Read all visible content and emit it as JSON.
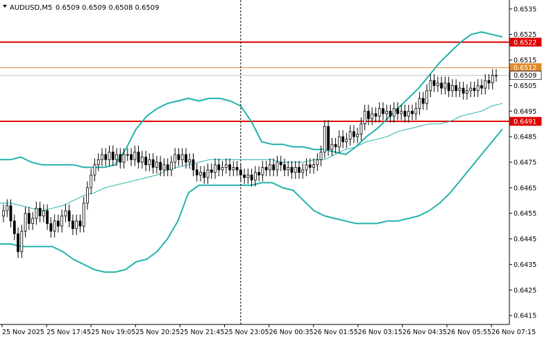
{
  "header": {
    "symbol": "AUDUSD,M5",
    "ohlc": "0.6509 0.6509 0.6508 0.6509"
  },
  "colors": {
    "background": "#ffffff",
    "candle": "#000000",
    "bollinger": "#20b2aa",
    "moving_average": "#20b2aa",
    "support_resistance": "#e00000",
    "orange_level": "#e08a2a",
    "current_price_line": "#c0c0c0",
    "dropdown_icon": "chevron-down-icon"
  },
  "chart_data": {
    "type": "candlestick",
    "x_tick_labels": [
      "25 Nov 2025",
      "25 Nov 17:45",
      "25 Nov 19:05",
      "25 Nov 20:25",
      "25 Nov 21:45",
      "25 Nov 23:05",
      "26 Nov 00:35",
      "26 Nov 01:55",
      "26 Nov 03:15",
      "26 Nov 04:35",
      "26 Nov 05:55",
      "26 Nov 07:15"
    ],
    "y_ticks": [
      "0.6535",
      "0.6525",
      "0.6515",
      "0.6505",
      "0.6495",
      "0.6485",
      "0.6475",
      "0.6465",
      "0.6455",
      "0.6445",
      "0.6435",
      "0.6425",
      "0.6415"
    ],
    "ylim": [
      0.64115,
      0.65385
    ],
    "grid": false,
    "horizontal_levels": [
      {
        "label": "0.6522",
        "value": 0.6522,
        "kind": "resistance"
      },
      {
        "label": "0.6512",
        "value": 0.6512,
        "kind": "orange"
      },
      {
        "label": "0.6509",
        "value": 0.6509,
        "kind": "current"
      },
      {
        "label": "0.6491",
        "value": 0.6491,
        "kind": "support"
      }
    ],
    "vertical_marker_index": 65,
    "candles_close": [
      0.6456,
      0.6458,
      0.6452,
      0.6447,
      0.644,
      0.6448,
      0.6455,
      0.6451,
      0.6453,
      0.6457,
      0.6454,
      0.6456,
      0.6451,
      0.6448,
      0.6452,
      0.645,
      0.6454,
      0.6456,
      0.6452,
      0.6449,
      0.6452,
      0.645,
      0.6459,
      0.6465,
      0.647,
      0.6474,
      0.6476,
      0.6478,
      0.6476,
      0.6479,
      0.6476,
      0.6478,
      0.6475,
      0.6478,
      0.6478,
      0.6476,
      0.6479,
      0.6475,
      0.6477,
      0.6474,
      0.6476,
      0.6473,
      0.6475,
      0.6472,
      0.6474,
      0.6472,
      0.6475,
      0.6478,
      0.6476,
      0.6478,
      0.6475,
      0.6476,
      0.6472,
      0.647,
      0.6471,
      0.6469,
      0.6472,
      0.6471,
      0.6474,
      0.6472,
      0.6473,
      0.6474,
      0.6472,
      0.6473,
      0.6472,
      0.647,
      0.6469,
      0.647,
      0.6468,
      0.6471,
      0.647,
      0.6473,
      0.6472,
      0.6474,
      0.6472,
      0.6475,
      0.6474,
      0.6472,
      0.6473,
      0.6471,
      0.6473,
      0.6471,
      0.6472,
      0.6474,
      0.6473,
      0.6474,
      0.6476,
      0.6479,
      0.6489,
      0.648,
      0.6482,
      0.6481,
      0.6485,
      0.6483,
      0.6484,
      0.6487,
      0.6485,
      0.6486,
      0.649,
      0.6495,
      0.6492,
      0.6494,
      0.6493,
      0.6496,
      0.6494,
      0.6495,
      0.6493,
      0.6496,
      0.6494,
      0.6495,
      0.6493,
      0.6495,
      0.6494,
      0.6496,
      0.65,
      0.6498,
      0.6503,
      0.6507,
      0.6505,
      0.6506,
      0.6504,
      0.6506,
      0.6503,
      0.6505,
      0.6503,
      0.6504,
      0.6502,
      0.6503,
      0.6504,
      0.6503,
      0.6505,
      0.6504,
      0.6507,
      0.6506,
      0.6509,
      0.6509
    ],
    "bollinger_upper": [
      0.6476,
      0.6476,
      0.6477,
      0.6475,
      0.6474,
      0.6474,
      0.6474,
      0.6474,
      0.6473,
      0.6473,
      0.6473,
      0.6474,
      0.648,
      0.6488,
      0.6493,
      0.6496,
      0.6498,
      0.6499,
      0.65,
      0.6499,
      0.65,
      0.65,
      0.6499,
      0.6497,
      0.6491,
      0.6483,
      0.6482,
      0.6482,
      0.6481,
      0.6481,
      0.648,
      0.648,
      0.6479,
      0.6478,
      0.6481,
      0.6485,
      0.6488,
      0.6492,
      0.6496,
      0.65,
      0.6504,
      0.6509,
      0.6514,
      0.6518,
      0.6522,
      0.6525,
      0.6526,
      0.6525,
      0.6524
    ],
    "bollinger_middle": [
      0.6459,
      0.6459,
      0.6458,
      0.6457,
      0.6456,
      0.6457,
      0.6458,
      0.646,
      0.6462,
      0.6463,
      0.6465,
      0.6466,
      0.6467,
      0.6468,
      0.6469,
      0.647,
      0.6472,
      0.6473,
      0.6474,
      0.6475,
      0.6476,
      0.6476,
      0.6476,
      0.6476,
      0.6476,
      0.6476,
      0.6476,
      0.6475,
      0.6475,
      0.6475,
      0.6476,
      0.6476,
      0.6478,
      0.648,
      0.6481,
      0.6483,
      0.6484,
      0.6485,
      0.6487,
      0.6488,
      0.6489,
      0.649,
      0.649,
      0.6491,
      0.6493,
      0.6494,
      0.6495,
      0.6497,
      0.6498
    ],
    "bollinger_lower": [
      0.6443,
      0.6443,
      0.6442,
      0.6442,
      0.6442,
      0.6442,
      0.644,
      0.6437,
      0.6435,
      0.6433,
      0.6432,
      0.6432,
      0.6433,
      0.6436,
      0.6437,
      0.644,
      0.6445,
      0.6452,
      0.6463,
      0.6466,
      0.6466,
      0.6466,
      0.6466,
      0.6466,
      0.6466,
      0.6467,
      0.6467,
      0.6465,
      0.6464,
      0.646,
      0.6456,
      0.6454,
      0.6453,
      0.6452,
      0.6451,
      0.6451,
      0.6451,
      0.6452,
      0.6452,
      0.6453,
      0.6454,
      0.6456,
      0.6459,
      0.6463,
      0.6468,
      0.6473,
      0.6478,
      0.6483,
      0.6488
    ]
  }
}
